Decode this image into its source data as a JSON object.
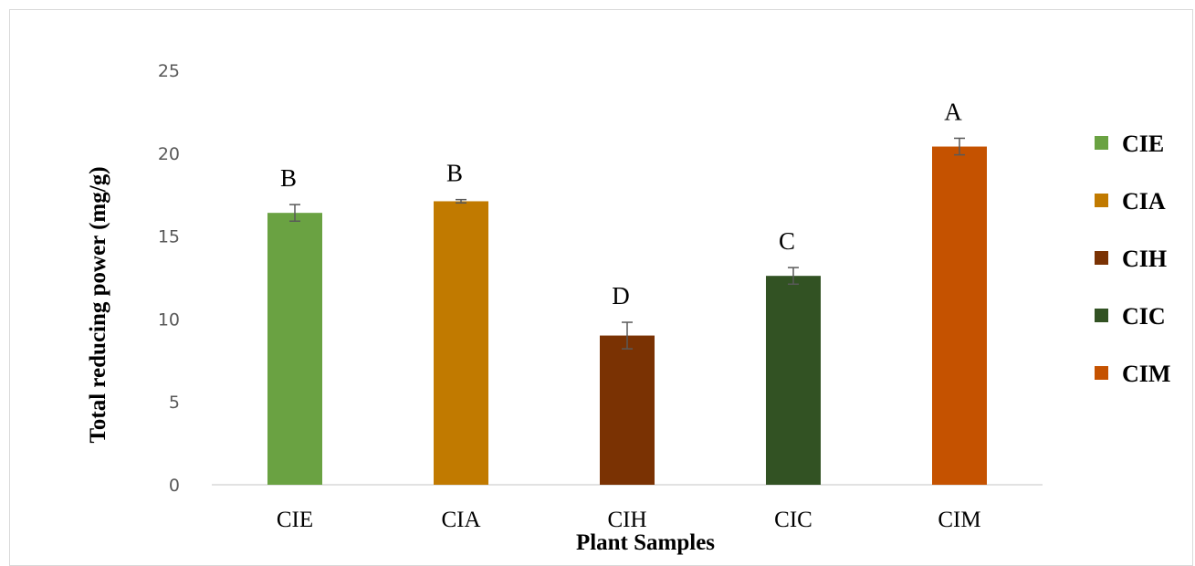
{
  "chart_data": {
    "type": "bar",
    "categories": [
      "CIE",
      "CIA",
      "CIH",
      "CIC",
      "CIM"
    ],
    "values": [
      16.4,
      17.1,
      9.0,
      12.6,
      20.4
    ],
    "errors": [
      0.5,
      0.1,
      0.8,
      0.5,
      0.5
    ],
    "significance": [
      "B",
      "B",
      "D",
      "C",
      "A"
    ],
    "colors": [
      "#6aa242",
      "#c17a00",
      "#7a3203",
      "#325223",
      "#c55200"
    ],
    "title": "",
    "xlabel": "Plant Samples",
    "ylabel": "Total reducing power (mg/g)",
    "ylim": [
      0,
      25
    ],
    "yticks": [
      0,
      5,
      10,
      15,
      20,
      25
    ],
    "grid": false,
    "legend_position": "right",
    "legend": [
      "CIE",
      "CIA",
      "CIH",
      "CIC",
      "CIM"
    ]
  }
}
